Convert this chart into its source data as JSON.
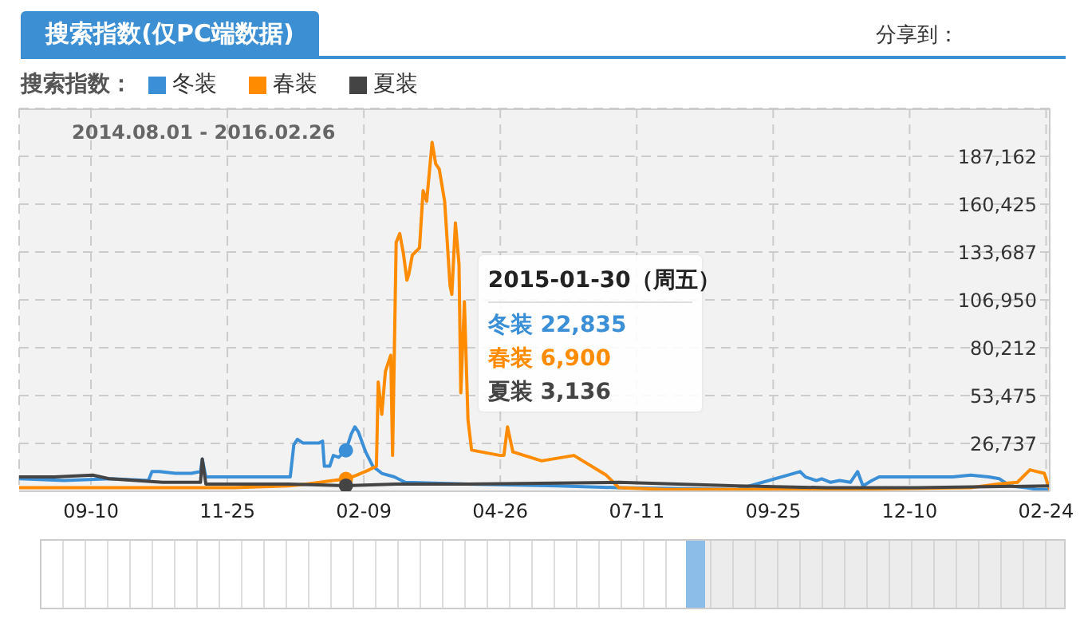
{
  "chart_data": {
    "type": "line",
    "title": "搜索指数(仅PC端数据)",
    "subtitle": "2014.08.01 - 2016.02.26",
    "legend_title": "搜索指数：",
    "legend": "top left",
    "grid": true,
    "marker": "none",
    "line_style": "solid",
    "xlim": [
      "2014-08-01",
      "2016-02-26"
    ],
    "xticks": [
      {
        "value": "2014-09-10",
        "label": "09-10"
      },
      {
        "value": "2014-11-25",
        "label": "11-25"
      },
      {
        "value": "2015-02-09",
        "label": "02-09"
      },
      {
        "value": "2015-04-26",
        "label": "04-26"
      },
      {
        "value": "2015-07-11",
        "label": "07-11"
      },
      {
        "value": "2015-09-25",
        "label": "09-25"
      },
      {
        "value": "2015-12-10",
        "label": "12-10"
      },
      {
        "value": "2016-02-24",
        "label": "02-24"
      }
    ],
    "ylim": [
      0,
      213900
    ],
    "yticks": [
      {
        "value": 26737,
        "label": "26,737"
      },
      {
        "value": 53475,
        "label": "53,475"
      },
      {
        "value": 80212,
        "label": "80,212"
      },
      {
        "value": 106950,
        "label": "106,950"
      },
      {
        "value": 133687,
        "label": "133,687"
      },
      {
        "value": 160425,
        "label": "160,425"
      },
      {
        "value": 187162,
        "label": "187,162"
      }
    ],
    "series": [
      {
        "name": "冬装",
        "color": "#3a8fd6",
        "x": [
          "2014-08-01",
          "2014-08-26",
          "2014-09-21",
          "2014-10-12",
          "2014-10-14",
          "2014-10-18",
          "2014-10-27",
          "2014-11-05",
          "2014-11-10",
          "2014-11-11",
          "2014-11-13",
          "2014-12-01",
          "2014-12-19",
          "2014-12-30",
          "2015-01-01",
          "2015-01-03",
          "2015-01-06",
          "2015-01-15",
          "2015-01-17",
          "2015-01-18",
          "2015-01-21",
          "2015-01-23",
          "2015-01-26",
          "2015-01-30",
          "2015-02-02",
          "2015-02-04",
          "2015-02-06",
          "2015-02-10",
          "2015-02-14",
          "2015-02-19",
          "2015-02-26",
          "2015-03-04",
          "2015-04-08",
          "2015-05-28",
          "2015-07-01",
          "2015-09-05",
          "2015-10-10",
          "2015-10-13",
          "2015-10-19",
          "2015-10-22",
          "2015-10-27",
          "2015-11-01",
          "2015-11-07",
          "2015-11-11",
          "2015-11-14",
          "2015-11-19",
          "2015-11-23",
          "2015-12-04",
          "2015-12-19",
          "2016-01-03",
          "2016-01-13",
          "2016-01-23",
          "2016-01-29",
          "2016-02-04",
          "2016-02-13",
          "2016-02-19",
          "2016-02-26"
        ],
        "values": [
          7000,
          6000,
          7000,
          6000,
          11000,
          11000,
          10000,
          10000,
          11000,
          18000,
          8000,
          8000,
          8000,
          8000,
          26000,
          29000,
          27000,
          27000,
          28000,
          14000,
          14000,
          20000,
          19000,
          22835,
          32000,
          36000,
          33000,
          22000,
          14000,
          10000,
          8000,
          5000,
          4000,
          3000,
          2000,
          1000,
          11000,
          8000,
          6000,
          7000,
          5000,
          6000,
          5000,
          11000,
          3000,
          6000,
          8000,
          8000,
          8000,
          8000,
          9000,
          8000,
          7000,
          3000,
          2000,
          1000,
          1000
        ]
      },
      {
        "name": "春装",
        "color": "#ff8c00",
        "x": [
          "2014-08-01",
          "2014-09-30",
          "2014-11-29",
          "2014-12-29",
          "2015-01-08",
          "2015-01-23",
          "2015-01-30",
          "2015-02-05",
          "2015-02-12",
          "2015-02-16",
          "2015-02-17",
          "2015-02-19",
          "2015-02-21",
          "2015-02-24",
          "2015-02-25",
          "2015-02-27",
          "2015-03-01",
          "2015-03-03",
          "2015-03-05",
          "2015-03-06",
          "2015-03-08",
          "2015-03-12",
          "2015-03-14",
          "2015-03-16",
          "2015-03-19",
          "2015-03-21",
          "2015-03-23",
          "2015-03-26",
          "2015-03-29",
          "2015-03-30",
          "2015-04-01",
          "2015-04-03",
          "2015-04-04",
          "2015-04-06",
          "2015-04-08",
          "2015-04-10",
          "2015-04-26",
          "2015-04-28",
          "2015-04-30",
          "2015-05-03",
          "2015-05-19",
          "2015-06-06",
          "2015-06-24",
          "2015-07-01",
          "2015-07-27",
          "2015-10-25",
          "2016-01-13",
          "2016-01-28",
          "2016-02-08",
          "2016-02-15",
          "2016-02-19",
          "2016-02-23",
          "2016-02-26"
        ],
        "values": [
          2000,
          2000,
          2000,
          3000,
          4000,
          6000,
          6900,
          9000,
          12000,
          14000,
          61000,
          43000,
          67000,
          76000,
          20000,
          139000,
          144000,
          133000,
          118000,
          121000,
          132000,
          136000,
          168000,
          162000,
          195000,
          183000,
          180000,
          162000,
          115000,
          110000,
          150000,
          127000,
          55000,
          106000,
          40000,
          23000,
          20000,
          20000,
          36000,
          22000,
          17000,
          20000,
          9000,
          2000,
          1000,
          1000,
          2000,
          4000,
          5000,
          12000,
          11000,
          10000,
          1000
        ]
      },
      {
        "name": "夏装",
        "color": "#444444",
        "x": [
          "2014-08-01",
          "2014-08-21",
          "2014-09-11",
          "2014-09-20",
          "2014-10-20",
          "2014-11-10",
          "2014-11-11",
          "2014-11-13",
          "2014-12-29",
          "2015-01-30",
          "2015-02-27",
          "2015-04-08",
          "2015-07-01",
          "2015-09-05",
          "2015-10-25",
          "2015-12-14",
          "2016-02-26"
        ],
        "values": [
          8000,
          8000,
          9000,
          7000,
          5000,
          5000,
          18000,
          4000,
          4000,
          3136,
          4000,
          4000,
          5000,
          3000,
          2000,
          2000,
          3000
        ]
      },
      {
        "type": "scatter",
        "marker": "circle",
        "x": [
          "2015-01-30",
          "2015-01-30",
          "2015-01-30"
        ],
        "values": [
          22835,
          6900,
          3136
        ],
        "colors": [
          "#3a8fd6",
          "#ff8c00",
          "#444444"
        ]
      }
    ],
    "annotations": [
      "2015-01-30（周五）",
      "冬装 22,835",
      "春装 6,900",
      "夏装 3,136",
      "分享到："
    ]
  }
}
